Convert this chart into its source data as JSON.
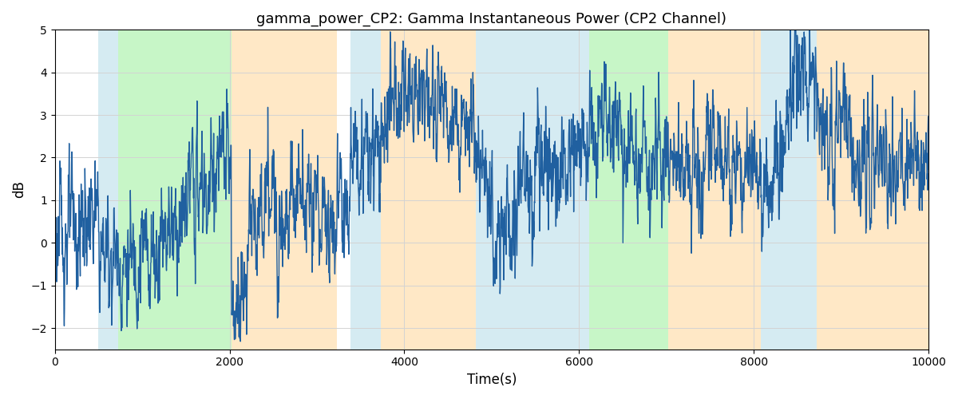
{
  "title": "gamma_power_CP2: Gamma Instantaneous Power (CP2 Channel)",
  "xlabel": "Time(s)",
  "ylabel": "dB",
  "xlim": [
    0,
    10000
  ],
  "ylim": [
    -2.5,
    5
  ],
  "yticks": [
    -2,
    -1,
    0,
    1,
    2,
    3,
    4,
    5
  ],
  "xticks": [
    0,
    2000,
    4000,
    6000,
    8000,
    10000
  ],
  "line_color": "#2060a0",
  "line_width": 1.0,
  "bg_bands": [
    {
      "xmin": 500,
      "xmax": 720,
      "color": "#add8e6",
      "alpha": 0.5
    },
    {
      "xmin": 720,
      "xmax": 2020,
      "color": "#90ee90",
      "alpha": 0.5
    },
    {
      "xmin": 2020,
      "xmax": 3230,
      "color": "#ffd9a0",
      "alpha": 0.6
    },
    {
      "xmin": 3380,
      "xmax": 3730,
      "color": "#add8e6",
      "alpha": 0.5
    },
    {
      "xmin": 3730,
      "xmax": 4820,
      "color": "#ffd9a0",
      "alpha": 0.6
    },
    {
      "xmin": 4820,
      "xmax": 5780,
      "color": "#add8e6",
      "alpha": 0.5
    },
    {
      "xmin": 5780,
      "xmax": 6120,
      "color": "#add8e6",
      "alpha": 0.5
    },
    {
      "xmin": 6120,
      "xmax": 7020,
      "color": "#90ee90",
      "alpha": 0.5
    },
    {
      "xmin": 7020,
      "xmax": 8080,
      "color": "#ffd9a0",
      "alpha": 0.6
    },
    {
      "xmin": 8080,
      "xmax": 8720,
      "color": "#add8e6",
      "alpha": 0.5
    },
    {
      "xmin": 8720,
      "xmax": 10000,
      "color": "#ffd9a0",
      "alpha": 0.6
    }
  ],
  "figsize": [
    12,
    5
  ],
  "dpi": 100
}
